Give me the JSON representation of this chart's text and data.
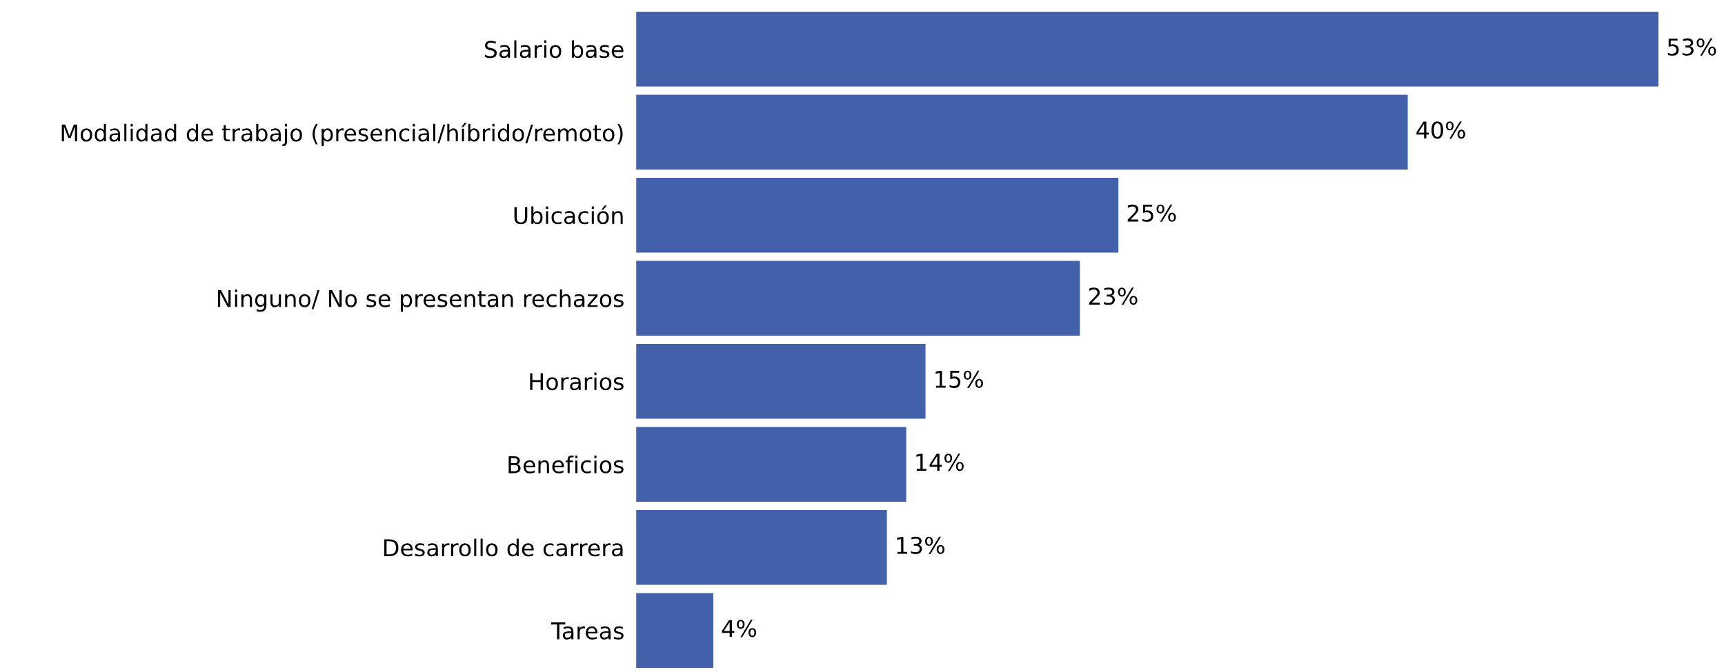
{
  "chart_data": {
    "type": "bar",
    "orientation": "horizontal",
    "categories": [
      "Salario base",
      "Modalidad de trabajo (presencial/híbrido/remoto)",
      "Ubicación",
      "Ninguno/ No se presentan rechazos",
      "Horarios",
      "Beneficios",
      "Desarrollo de carrera",
      "Tareas"
    ],
    "values": [
      53,
      40,
      25,
      23,
      15,
      14,
      13,
      4
    ],
    "value_labels": [
      "53%",
      "40%",
      "25%",
      "23%",
      "15%",
      "14%",
      "13%",
      "4%"
    ],
    "color": "#4361aa",
    "grid": false,
    "legend": false
  }
}
